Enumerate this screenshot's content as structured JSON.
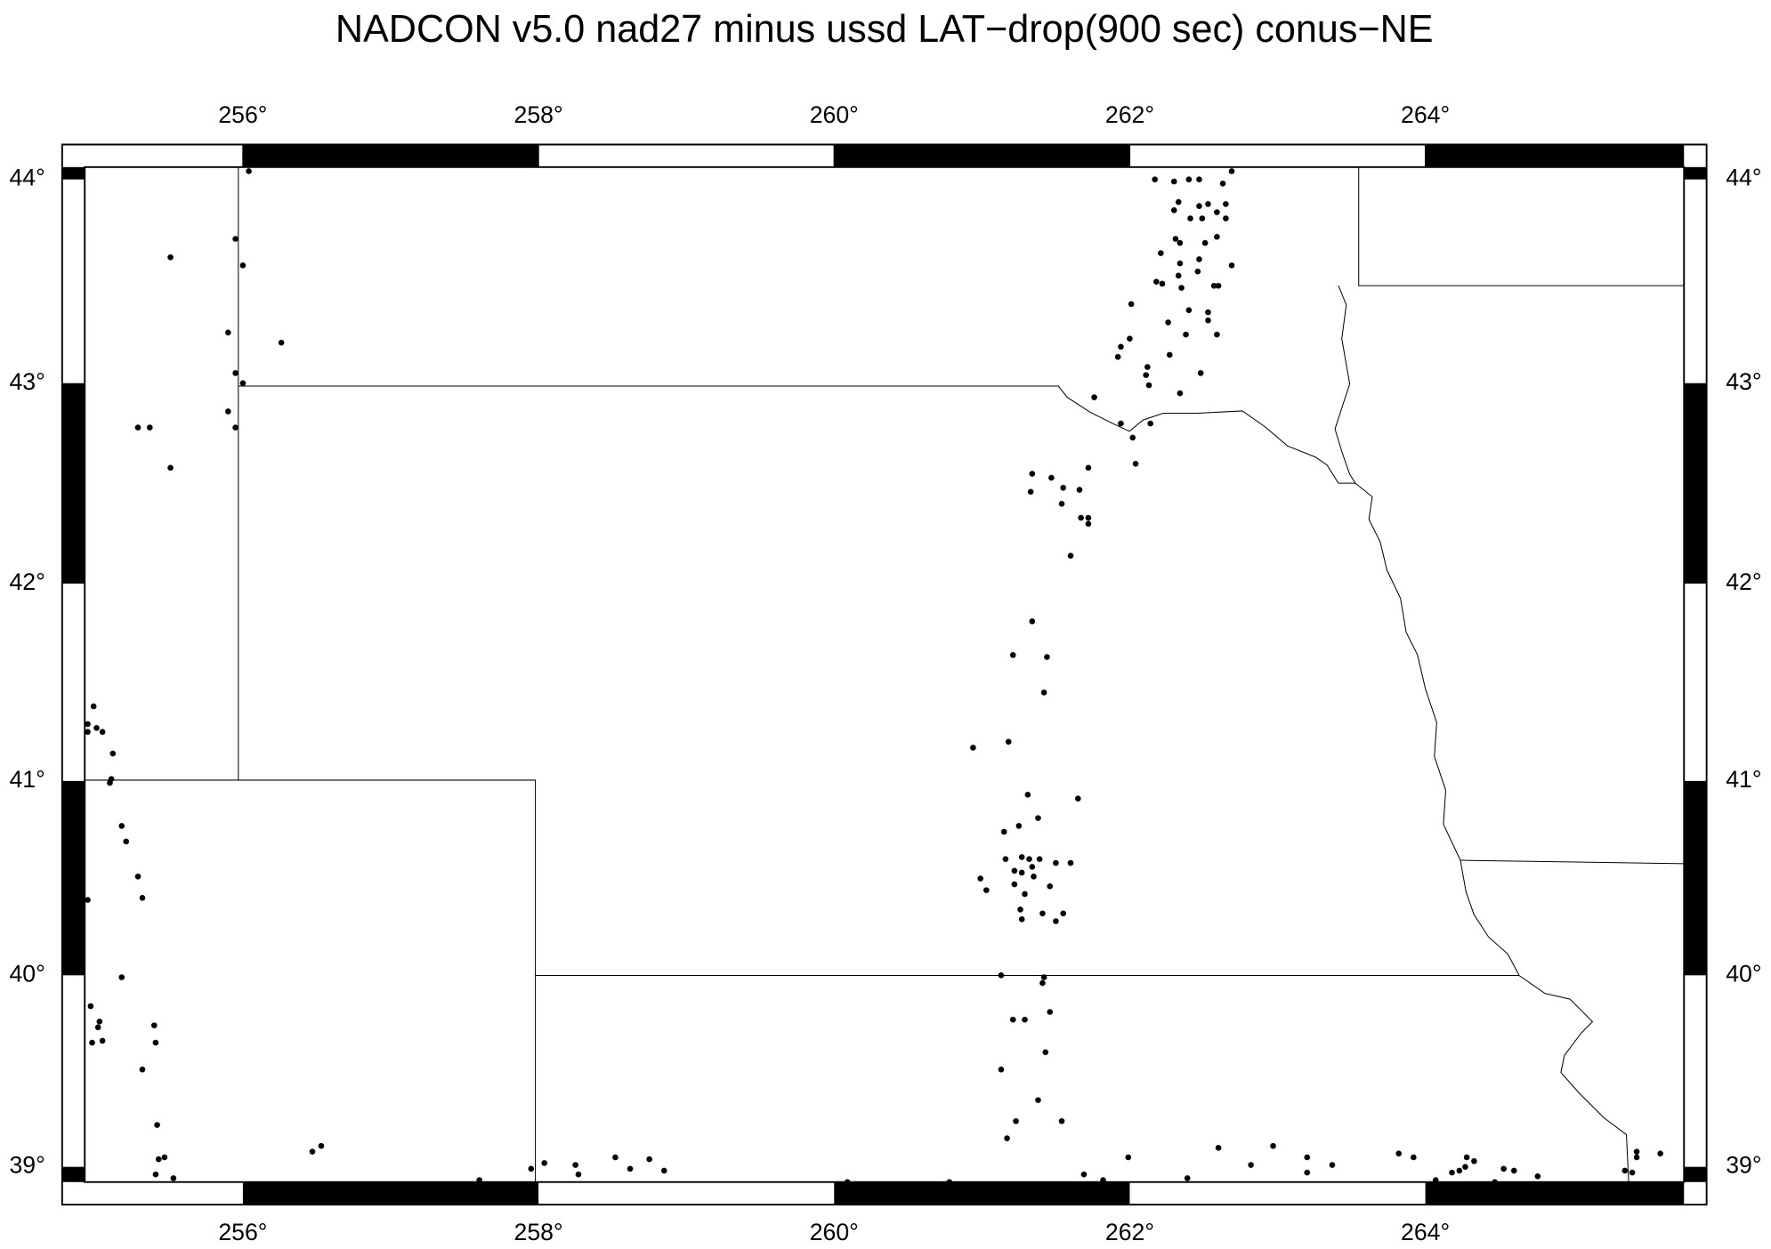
{
  "chart_data": {
    "type": "scatter",
    "projection": "mercator",
    "title": "NADCON v5.0 nad27 minus ussd LAT−drop(900 sec) conus−NE",
    "color": "#000000",
    "xlim": [
      254.93,
      265.75
    ],
    "ylim": [
      38.92,
      44.06
    ],
    "xticks": [
      {
        "value": 256,
        "label": "256°"
      },
      {
        "value": 258,
        "label": "258°"
      },
      {
        "value": 260,
        "label": "260°"
      },
      {
        "value": 262,
        "label": "262°"
      },
      {
        "value": 264,
        "label": "264°"
      }
    ],
    "yticks": [
      {
        "value": 39,
        "label": "39°"
      },
      {
        "value": 40,
        "label": "40°"
      },
      {
        "value": 41,
        "label": "41°"
      },
      {
        "value": 42,
        "label": "42°"
      },
      {
        "value": 43,
        "label": "43°"
      },
      {
        "value": 44,
        "label": "44°"
      }
    ],
    "x": [
      256.04,
      255.51,
      255.95,
      256.0,
      255.9,
      256.26,
      255.95,
      256.0,
      255.29,
      255.37,
      255.9,
      255.95,
      255.51,
      254.99,
      254.95,
      255.01,
      255.05,
      254.95,
      255.12,
      255.11,
      255.1,
      255.18,
      255.21,
      255.29,
      255.32,
      254.95,
      255.18,
      254.97,
      255.03,
      255.02,
      255.05,
      254.98,
      255.4,
      255.41,
      255.32,
      255.42,
      255.47,
      255.43,
      255.41,
      255.53,
      256.47,
      256.53,
      257.6,
      257.95,
      258.04,
      258.25,
      258.27,
      258.52,
      258.62,
      258.75,
      258.85,
      260.09,
      260.78,
      261.34,
      261.47,
      261.72,
      261.33,
      261.55,
      261.66,
      261.54,
      261.67,
      261.72,
      261.72,
      261.6,
      261.34,
      261.21,
      261.44,
      261.42,
      261.18,
      260.94,
      261.31,
      261.65,
      261.38,
      261.25,
      261.15,
      261.16,
      261.27,
      261.32,
      261.39,
      261.22,
      261.34,
      261.27,
      261.35,
      261.5,
      261.6,
      260.99,
      261.03,
      261.22,
      261.29,
      261.46,
      261.26,
      261.27,
      261.41,
      261.5,
      261.55,
      261.13,
      261.42,
      261.41,
      261.21,
      261.29,
      261.46,
      261.43,
      261.13,
      261.38,
      261.54,
      261.23,
      261.17,
      261.69,
      261.82,
      261.76,
      261.94,
      262.02,
      262.14,
      262.04,
      261.92,
      261.94,
      262.0,
      262.01,
      262.12,
      262.11,
      262.13,
      262.26,
      262.27,
      262.34,
      262.18,
      262.22,
      262.33,
      262.35,
      262.34,
      262.38,
      262.4,
      262.46,
      262.47,
      262.48,
      262.53,
      262.53,
      262.59,
      262.57,
      262.6,
      262.69,
      262.21,
      262.31,
      262.34,
      262.51,
      262.59,
      262.17,
      262.3,
      262.4,
      262.47,
      262.63,
      262.69,
      262.33,
      262.3,
      262.41,
      262.47,
      262.53,
      262.49,
      262.59,
      262.65,
      262.65,
      261.99,
      262.39,
      262.6,
      262.82,
      262.97,
      263.2,
      263.2,
      263.37,
      263.82,
      263.92,
      264.07,
      264.18,
      264.23,
      264.28,
      264.33,
      264.27,
      264.47,
      264.53,
      264.6,
      264.76,
      265.35,
      265.4,
      265.43,
      265.43,
      265.59
    ],
    "values": [
      44.04,
      43.62,
      43.71,
      43.58,
      43.25,
      43.2,
      43.05,
      43.0,
      42.78,
      42.78,
      42.86,
      42.78,
      42.58,
      41.38,
      41.29,
      41.27,
      41.25,
      41.25,
      41.14,
      41.01,
      40.99,
      40.77,
      40.69,
      40.51,
      40.4,
      40.39,
      39.99,
      39.84,
      39.76,
      39.73,
      39.66,
      39.65,
      39.74,
      39.65,
      39.51,
      39.22,
      39.05,
      39.04,
      38.96,
      38.94,
      39.08,
      39.11,
      38.93,
      38.99,
      39.02,
      39.01,
      38.96,
      39.05,
      38.99,
      39.04,
      38.98,
      38.92,
      38.92,
      42.55,
      42.53,
      42.58,
      42.46,
      42.48,
      42.47,
      42.4,
      42.33,
      42.33,
      42.3,
      42.14,
      41.81,
      41.64,
      41.63,
      41.45,
      41.2,
      41.17,
      40.93,
      40.91,
      40.81,
      40.77,
      40.74,
      40.6,
      40.61,
      40.6,
      40.6,
      40.54,
      40.56,
      40.53,
      40.51,
      40.58,
      40.58,
      40.5,
      40.44,
      40.47,
      40.42,
      40.46,
      40.34,
      40.29,
      40.32,
      40.28,
      40.32,
      40.0,
      39.99,
      39.96,
      39.77,
      39.77,
      39.81,
      39.6,
      39.51,
      39.35,
      39.24,
      39.24,
      39.15,
      38.96,
      38.93,
      42.93,
      42.8,
      42.73,
      42.8,
      42.6,
      43.13,
      43.18,
      43.22,
      43.39,
      43.08,
      43.04,
      42.99,
      43.3,
      43.14,
      42.95,
      43.5,
      43.49,
      43.53,
      43.47,
      43.59,
      43.24,
      43.36,
      43.55,
      43.61,
      43.05,
      43.35,
      43.31,
      43.24,
      43.48,
      43.48,
      43.58,
      43.64,
      43.71,
      43.69,
      43.69,
      43.72,
      44.0,
      43.99,
      44.0,
      44.0,
      43.98,
      44.04,
      43.89,
      43.85,
      43.81,
      43.87,
      43.88,
      43.81,
      43.84,
      43.88,
      43.81,
      39.05,
      38.94,
      39.1,
      39.01,
      39.11,
      39.05,
      38.97,
      39.01,
      39.07,
      39.05,
      38.93,
      38.97,
      38.98,
      39.05,
      39.03,
      39.0,
      38.92,
      38.99,
      38.98,
      38.95,
      38.98,
      38.97,
      39.08,
      39.05,
      39.07
    ]
  }
}
